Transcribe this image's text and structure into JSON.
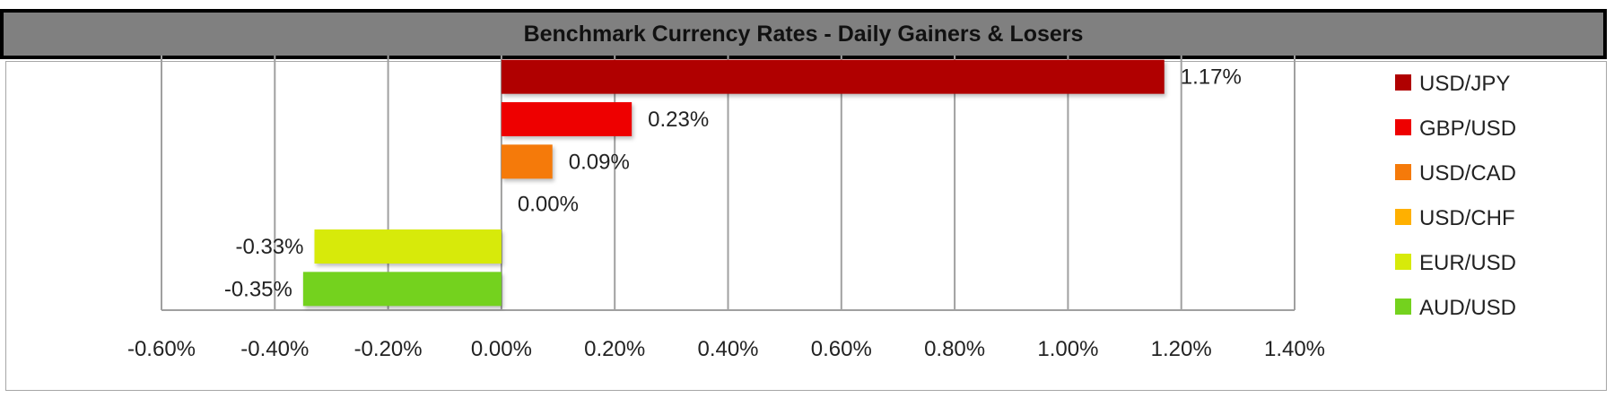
{
  "chart_data": {
    "type": "bar",
    "orientation": "horizontal",
    "title": "Benchmark Currency Rates - Daily Gainers & Losers",
    "categories": [
      "USD/JPY",
      "GBP/USD",
      "USD/CAD",
      "USD/CHF",
      "EUR/USD",
      "AUD/USD"
    ],
    "values": [
      1.17,
      0.23,
      0.09,
      0.0,
      -0.33,
      -0.35
    ],
    "data_labels": [
      "1.17%",
      "0.23%",
      "0.09%",
      "0.00%",
      "-0.33%",
      "-0.35%"
    ],
    "colors": [
      "#B00000",
      "#EE0000",
      "#F57A0A",
      "#FFB000",
      "#D7EA0A",
      "#74D21E"
    ],
    "xlim": [
      -0.6,
      1.4
    ],
    "x_ticks": [
      -0.6,
      -0.4,
      -0.2,
      0,
      0.2,
      0.4,
      0.6,
      0.8,
      1.0,
      1.2,
      1.4
    ],
    "x_tick_labels": [
      "-0.60%",
      "-0.40%",
      "-0.20%",
      "0.00%",
      "0.20%",
      "0.40%",
      "0.60%",
      "0.80%",
      "1.00%",
      "1.20%",
      "1.40%"
    ],
    "grid": "vertical",
    "legend": "right",
    "xlabel": "",
    "ylabel": ""
  }
}
